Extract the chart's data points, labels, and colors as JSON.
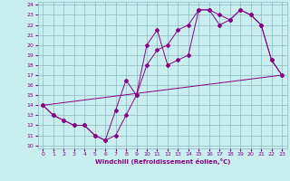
{
  "xlabel": "Windchill (Refroidissement éolien,°C)",
  "bg_color": "#c8eef0",
  "grid_color": "#8cb8c0",
  "line_color": "#880088",
  "xlim": [
    -0.5,
    23.5
  ],
  "ylim": [
    9.7,
    24.3
  ],
  "xticks": [
    0,
    1,
    2,
    3,
    4,
    5,
    6,
    7,
    8,
    9,
    10,
    11,
    12,
    13,
    14,
    15,
    16,
    17,
    18,
    19,
    20,
    21,
    22,
    23
  ],
  "yticks": [
    10,
    11,
    12,
    13,
    14,
    15,
    16,
    17,
    18,
    19,
    20,
    21,
    22,
    23,
    24
  ],
  "line1_x": [
    0,
    1,
    2,
    3,
    4,
    5,
    6,
    7,
    8,
    9,
    10,
    11,
    12,
    13,
    14,
    15,
    16,
    17,
    18,
    19,
    20,
    21,
    22,
    23
  ],
  "line1_y": [
    14,
    13,
    12.5,
    12,
    12,
    11,
    10.5,
    11,
    13,
    15,
    18,
    19.5,
    20,
    21.5,
    22,
    23.5,
    23.5,
    23,
    22.5,
    23.5,
    23,
    22,
    18.5,
    17
  ],
  "line2_x": [
    0,
    1,
    2,
    3,
    4,
    5,
    6,
    7,
    8,
    9,
    10,
    11,
    12,
    13,
    14,
    15,
    16,
    17,
    18,
    19,
    20,
    21,
    22,
    23
  ],
  "line2_y": [
    14,
    13,
    12.5,
    12,
    12,
    11,
    10.5,
    13.5,
    16.5,
    15,
    20,
    21.5,
    18,
    18.5,
    19,
    23.5,
    23.5,
    22,
    22.5,
    23.5,
    23,
    22,
    18.5,
    17
  ],
  "line3_x": [
    0,
    23
  ],
  "line3_y": [
    14,
    17
  ]
}
